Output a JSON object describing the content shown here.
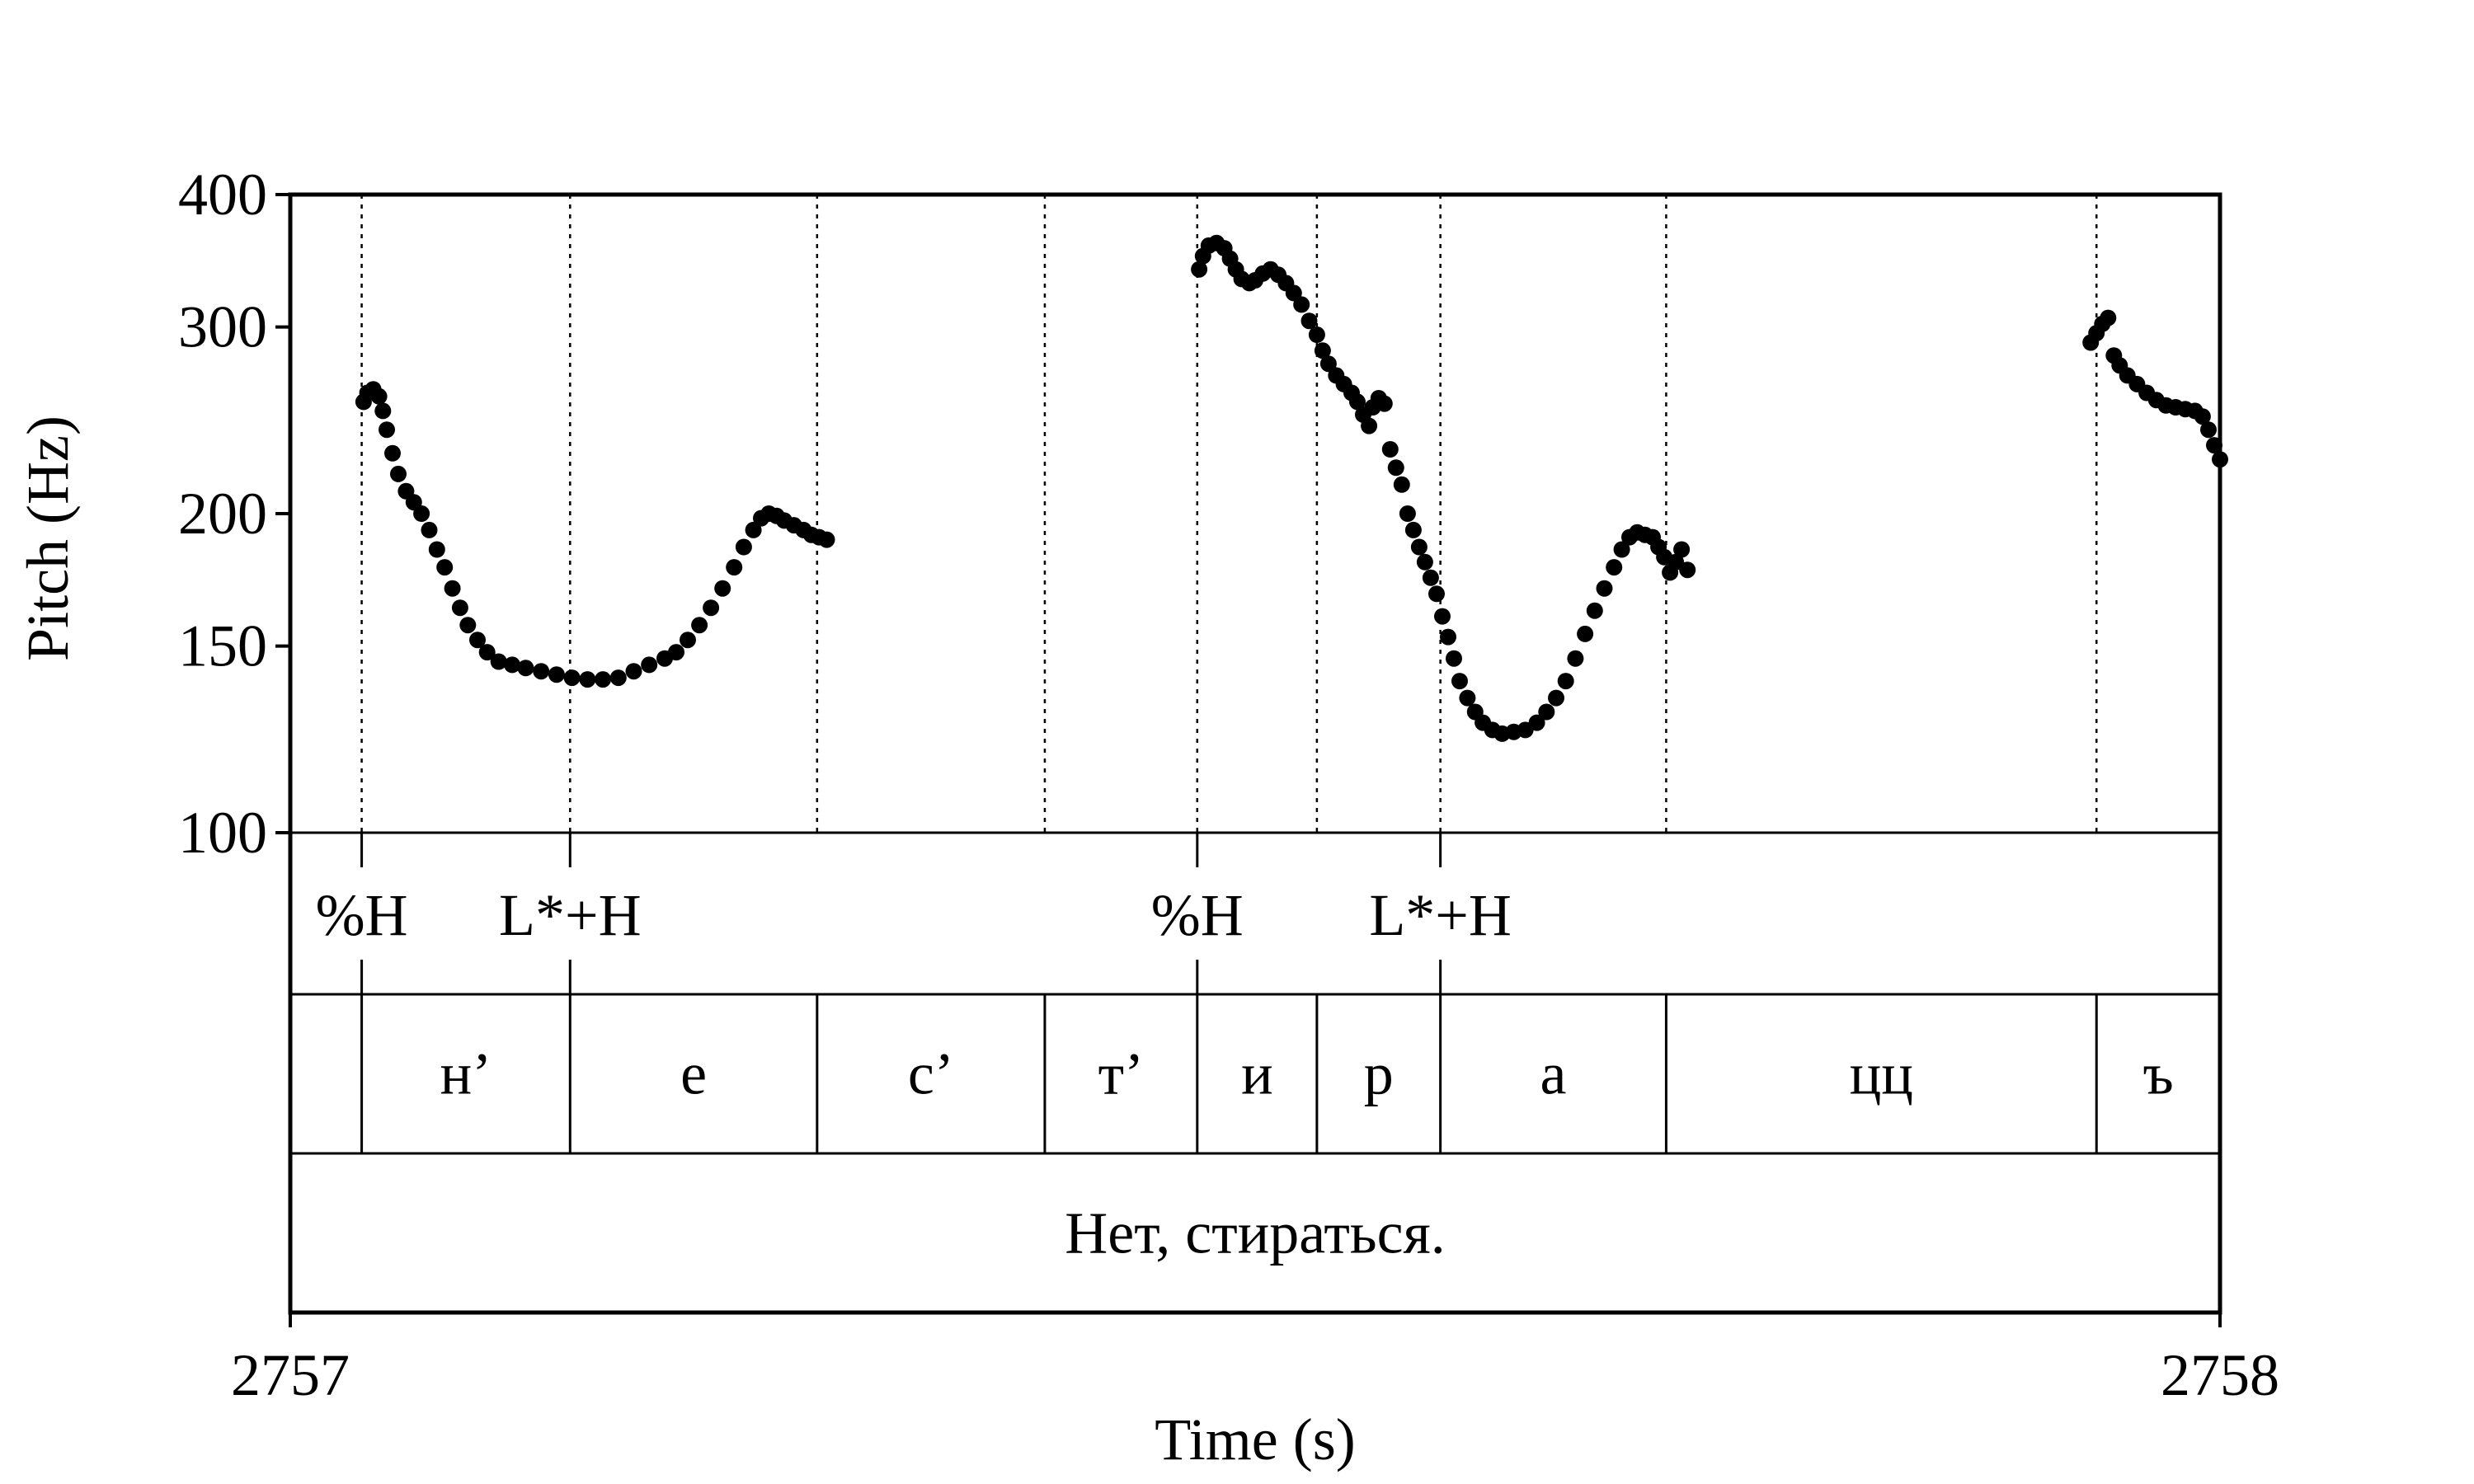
{
  "chart_data": {
    "type": "scatter",
    "xlabel": "Time (s)",
    "ylabel": "Pitch (Hz)",
    "xlim": [
      2757,
      2758
    ],
    "ylim": [
      100,
      400
    ],
    "y_scale": "log",
    "x_ticks": [
      {
        "value": 2757,
        "label": "2757"
      },
      {
        "value": 2758,
        "label": "2758"
      }
    ],
    "y_ticks": [
      {
        "value": 100,
        "label": "100"
      },
      {
        "value": 150,
        "label": "150"
      },
      {
        "value": 200,
        "label": "200"
      },
      {
        "value": 300,
        "label": "300"
      },
      {
        "value": 400,
        "label": "400"
      }
    ],
    "segment_boundaries": [
      2757.037,
      2757.145,
      2757.273,
      2757.391,
      2757.47,
      2757.532,
      2757.596,
      2757.713,
      2757.936
    ],
    "tiers": [
      {
        "name": "tones",
        "labels": [
          {
            "time": 2757.037,
            "text": "%H"
          },
          {
            "time": 2757.145,
            "text": "L*+H"
          },
          {
            "time": 2757.47,
            "text": "%H"
          },
          {
            "time": 2757.596,
            "text": "L*+H"
          }
        ]
      },
      {
        "name": "segments",
        "intervals": [
          {
            "start": 2757.0,
            "end": 2757.037,
            "text": ""
          },
          {
            "start": 2757.037,
            "end": 2757.145,
            "text": "н’"
          },
          {
            "start": 2757.145,
            "end": 2757.273,
            "text": "е"
          },
          {
            "start": 2757.273,
            "end": 2757.391,
            "text": "с’"
          },
          {
            "start": 2757.391,
            "end": 2757.47,
            "text": "т’"
          },
          {
            "start": 2757.47,
            "end": 2757.532,
            "text": "и"
          },
          {
            "start": 2757.532,
            "end": 2757.596,
            "text": "р"
          },
          {
            "start": 2757.596,
            "end": 2757.713,
            "text": "а"
          },
          {
            "start": 2757.713,
            "end": 2757.936,
            "text": "цц"
          },
          {
            "start": 2757.936,
            "end": 2758.0,
            "text": "ъ"
          }
        ]
      },
      {
        "name": "utterance",
        "intervals": [
          {
            "start": 2757.0,
            "end": 2758.0,
            "text": "Нет, стираться."
          }
        ]
      }
    ],
    "series": [
      {
        "points": [
          [
            2757.038,
            255
          ],
          [
            2757.04,
            260
          ],
          [
            2757.043,
            262
          ],
          [
            2757.046,
            258
          ],
          [
            2757.048,
            250
          ],
          [
            2757.05,
            240
          ],
          [
            2757.053,
            228
          ],
          [
            2757.056,
            218
          ],
          [
            2757.06,
            210
          ],
          [
            2757.064,
            205
          ],
          [
            2757.068,
            200
          ],
          [
            2757.072,
            193
          ],
          [
            2757.076,
            185
          ],
          [
            2757.08,
            178
          ],
          [
            2757.084,
            170
          ],
          [
            2757.088,
            163
          ],
          [
            2757.092,
            157
          ],
          [
            2757.097,
            152
          ],
          [
            2757.102,
            148
          ],
          [
            2757.108,
            145
          ],
          [
            2757.115,
            144
          ],
          [
            2757.122,
            143
          ],
          [
            2757.13,
            142
          ],
          [
            2757.138,
            141
          ],
          [
            2757.146,
            140
          ],
          [
            2757.154,
            139.5
          ],
          [
            2757.162,
            139.5
          ],
          [
            2757.17,
            140
          ],
          [
            2757.178,
            142
          ],
          [
            2757.186,
            144
          ],
          [
            2757.194,
            146
          ],
          [
            2757.2,
            148
          ],
          [
            2757.206,
            152
          ],
          [
            2757.212,
            157
          ],
          [
            2757.218,
            163
          ],
          [
            2757.224,
            170
          ],
          [
            2757.23,
            178
          ],
          [
            2757.235,
            186
          ],
          [
            2757.24,
            193
          ],
          [
            2757.244,
            198
          ],
          [
            2757.248,
            200
          ],
          [
            2757.252,
            199
          ],
          [
            2757.256,
            197
          ],
          [
            2757.261,
            195
          ],
          [
            2757.266,
            193
          ],
          [
            2757.27,
            191
          ],
          [
            2757.274,
            190
          ],
          [
            2757.278,
            189
          ]
        ]
      },
      {
        "points": [
          [
            2757.471,
            340
          ],
          [
            2757.473,
            350
          ],
          [
            2757.476,
            358
          ],
          [
            2757.48,
            360
          ],
          [
            2757.484,
            356
          ],
          [
            2757.487,
            348
          ],
          [
            2757.49,
            340
          ],
          [
            2757.493,
            333
          ],
          [
            2757.497,
            330
          ],
          [
            2757.5,
            332
          ],
          [
            2757.504,
            337
          ],
          [
            2757.508,
            340
          ],
          [
            2757.512,
            336
          ],
          [
            2757.516,
            330
          ],
          [
            2757.52,
            323
          ],
          [
            2757.524,
            315
          ],
          [
            2757.528,
            304
          ],
          [
            2757.532,
            295
          ],
          [
            2757.535,
            285
          ],
          [
            2757.538,
            277
          ],
          [
            2757.542,
            270
          ],
          [
            2757.546,
            265
          ],
          [
            2757.55,
            260
          ],
          [
            2757.553,
            255
          ],
          [
            2757.556,
            248
          ],
          [
            2757.559,
            242
          ],
          [
            2757.561,
            252
          ],
          [
            2757.564,
            257
          ],
          [
            2757.567,
            254
          ],
          [
            2757.57,
            230
          ],
          [
            2757.573,
            221
          ],
          [
            2757.576,
            213
          ],
          [
            2757.579,
            200
          ],
          [
            2757.582,
            193
          ],
          [
            2757.585,
            186
          ],
          [
            2757.588,
            180
          ],
          [
            2757.591,
            174
          ],
          [
            2757.594,
            168
          ],
          [
            2757.597,
            160
          ],
          [
            2757.6,
            153
          ],
          [
            2757.603,
            146
          ],
          [
            2757.606,
            139
          ],
          [
            2757.61,
            134
          ],
          [
            2757.614,
            130
          ],
          [
            2757.618,
            127
          ],
          [
            2757.623,
            125
          ],
          [
            2757.628,
            124
          ],
          [
            2757.634,
            124.5
          ],
          [
            2757.64,
            125
          ],
          [
            2757.646,
            127
          ],
          [
            2757.651,
            130
          ],
          [
            2757.656,
            134
          ],
          [
            2757.661,
            139
          ],
          [
            2757.666,
            146
          ],
          [
            2757.671,
            154
          ],
          [
            2757.676,
            162
          ],
          [
            2757.681,
            170
          ],
          [
            2757.686,
            178
          ],
          [
            2757.69,
            185
          ],
          [
            2757.694,
            190
          ],
          [
            2757.698,
            192
          ],
          [
            2757.702,
            191
          ],
          [
            2757.706,
            190
          ],
          [
            2757.709,
            186
          ],
          [
            2757.712,
            182
          ],
          [
            2757.715,
            176
          ],
          [
            2757.718,
            180
          ],
          [
            2757.721,
            185
          ],
          [
            2757.724,
            177
          ]
        ]
      },
      {
        "points": [
          [
            2757.933,
            290
          ],
          [
            2757.936,
            296
          ],
          [
            2757.939,
            302
          ],
          [
            2757.942,
            306
          ],
          [
            2757.945,
            282
          ],
          [
            2757.948,
            276
          ],
          [
            2757.952,
            270
          ],
          [
            2757.957,
            265
          ],
          [
            2757.962,
            260
          ],
          [
            2757.967,
            256
          ],
          [
            2757.972,
            253
          ],
          [
            2757.977,
            252
          ],
          [
            2757.982,
            251
          ],
          [
            2757.987,
            250
          ],
          [
            2757.991,
            247
          ],
          [
            2757.994,
            240
          ],
          [
            2757.997,
            232
          ],
          [
            2758.0,
            225
          ]
        ]
      }
    ]
  }
}
